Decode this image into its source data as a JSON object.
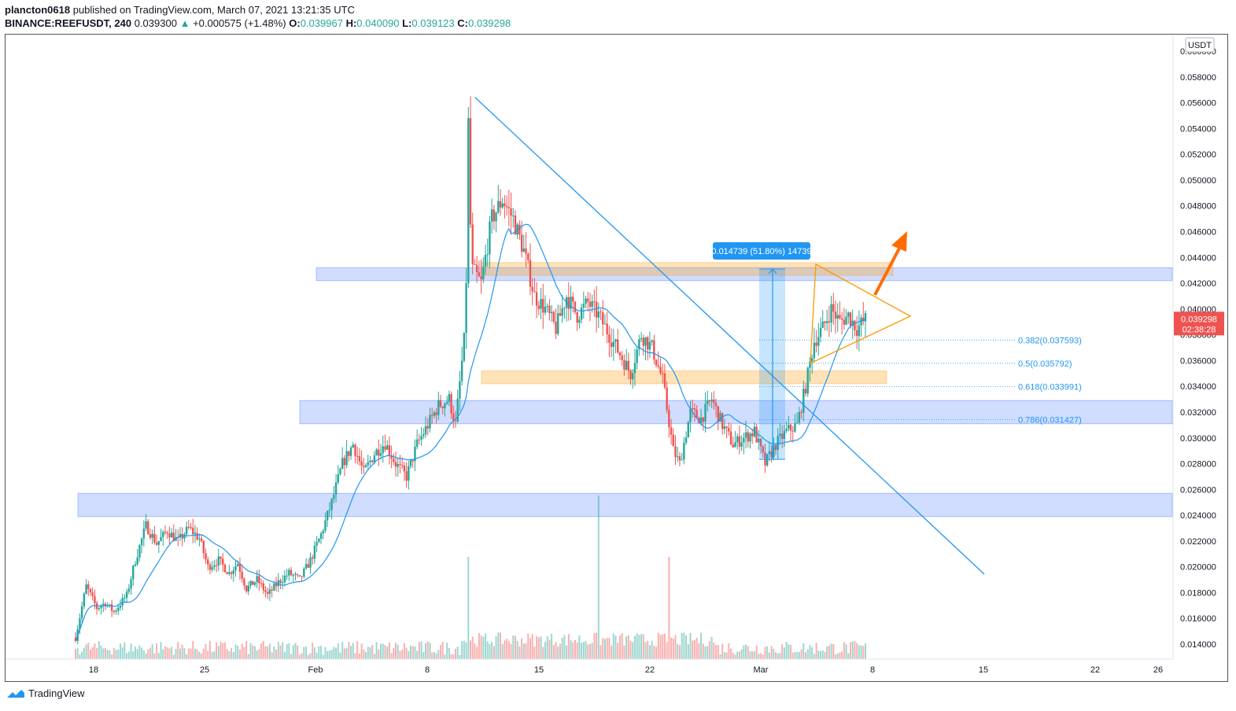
{
  "header": {
    "author": "plancton0618",
    "published": "published on TradingView.com, March 07, 2021 13:21:35 UTC",
    "symbol": "BINANCE:REEFUSDT, 240",
    "last": "0.039300",
    "change": "+0.000575 (+1.48%)",
    "o_label": "O:",
    "o_val": "0.039967",
    "h_label": "H:",
    "h_val": "0.040090",
    "l_label": "L:",
    "l_val": "0.039123",
    "c_label": "C:",
    "c_val": "0.039298"
  },
  "footer": {
    "brand": "TradingView"
  },
  "colors": {
    "up": "#26a69a",
    "down": "#ef5350",
    "zone_blue": "#2962ff",
    "zone_orange": "#ff9800",
    "line_blue": "#2196f3",
    "price_tag": "#ef5350"
  },
  "chart_data": {
    "type": "candlestick",
    "title": "BINANCE:REEFUSDT, 240",
    "currency_label": "USDT",
    "ylim": [
      0.0128,
      0.0612
    ],
    "y_ticks": [
      "0.014000",
      "0.016000",
      "0.018000",
      "0.020000",
      "0.022000",
      "0.024000",
      "0.026000",
      "0.028000",
      "0.030000",
      "0.032000",
      "0.034000",
      "0.036000",
      "0.038000",
      "0.040000",
      "0.042000",
      "0.044000",
      "0.046000",
      "0.048000",
      "0.050000",
      "0.052000",
      "0.054000",
      "0.056000",
      "0.058000",
      "0.060000"
    ],
    "x_ticks": [
      "18",
      "25",
      "Feb",
      "8",
      "15",
      "22",
      "Mar",
      "8",
      "15",
      "22",
      "26"
    ],
    "last_price": "0.039298",
    "countdown": "02:38:28",
    "measure_label": "0.014739 (51.80%) 14739",
    "fib_levels": [
      {
        "label": "0.382(0.037593)",
        "price": 0.037593
      },
      {
        "label": "0.5(0.035792)",
        "price": 0.035792
      },
      {
        "label": "0.618(0.033991)",
        "price": 0.033991
      },
      {
        "label": "0.786(0.031427)",
        "price": 0.031427
      }
    ],
    "zones": [
      {
        "color": "blue",
        "top": 0.0432,
        "bottom": 0.0422
      },
      {
        "color": "orange",
        "top": 0.0436,
        "bottom": 0.0426
      },
      {
        "color": "orange",
        "top": 0.0352,
        "bottom": 0.0342
      },
      {
        "color": "blue",
        "top": 0.0329,
        "bottom": 0.0311
      },
      {
        "color": "blue",
        "top": 0.0257,
        "bottom": 0.0239
      }
    ],
    "path_key": [
      [
        0,
        0.0145
      ],
      [
        5,
        0.0185
      ],
      [
        10,
        0.0168
      ],
      [
        14,
        0.0172
      ],
      [
        18,
        0.0165
      ],
      [
        24,
        0.0178
      ],
      [
        28,
        0.0205
      ],
      [
        33,
        0.0232
      ],
      [
        38,
        0.0218
      ],
      [
        43,
        0.0228
      ],
      [
        48,
        0.022
      ],
      [
        53,
        0.023
      ],
      [
        58,
        0.0222
      ],
      [
        62,
        0.02
      ],
      [
        67,
        0.0205
      ],
      [
        72,
        0.0195
      ],
      [
        76,
        0.0203
      ],
      [
        80,
        0.0183
      ],
      [
        85,
        0.019
      ],
      [
        90,
        0.0178
      ],
      [
        95,
        0.0188
      ],
      [
        100,
        0.0195
      ],
      [
        105,
        0.019
      ],
      [
        110,
        0.0205
      ],
      [
        115,
        0.0225
      ],
      [
        120,
        0.025
      ],
      [
        125,
        0.028
      ],
      [
        130,
        0.0295
      ],
      [
        135,
        0.0273
      ],
      [
        140,
        0.0288
      ],
      [
        145,
        0.0296
      ],
      [
        150,
        0.028
      ],
      [
        155,
        0.027
      ],
      [
        160,
        0.0295
      ],
      [
        165,
        0.031
      ],
      [
        170,
        0.0325
      ],
      [
        175,
        0.033
      ],
      [
        178,
        0.031
      ],
      [
        182,
        0.0375
      ],
      [
        184,
        0.05
      ],
      [
        186,
        0.043
      ],
      [
        190,
        0.042
      ],
      [
        195,
        0.047
      ],
      [
        200,
        0.0485
      ],
      [
        205,
        0.047
      ],
      [
        210,
        0.0445
      ],
      [
        215,
        0.041
      ],
      [
        220,
        0.04
      ],
      [
        225,
        0.0385
      ],
      [
        230,
        0.041
      ],
      [
        235,
        0.0395
      ],
      [
        240,
        0.0405
      ],
      [
        245,
        0.0395
      ],
      [
        250,
        0.038
      ],
      [
        255,
        0.0365
      ],
      [
        260,
        0.035
      ],
      [
        265,
        0.038
      ],
      [
        270,
        0.037
      ],
      [
        275,
        0.0345
      ],
      [
        280,
        0.029
      ],
      [
        283,
        0.028
      ],
      [
        288,
        0.032
      ],
      [
        293,
        0.0315
      ],
      [
        298,
        0.033
      ],
      [
        303,
        0.031
      ],
      [
        308,
        0.0295
      ],
      [
        313,
        0.03
      ],
      [
        318,
        0.0305
      ],
      [
        323,
        0.028
      ],
      [
        328,
        0.0295
      ],
      [
        333,
        0.0305
      ],
      [
        338,
        0.031
      ],
      [
        342,
        0.034
      ],
      [
        346,
        0.0375
      ],
      [
        350,
        0.0385
      ],
      [
        354,
        0.04
      ],
      [
        358,
        0.039
      ],
      [
        362,
        0.0395
      ],
      [
        366,
        0.0385
      ],
      [
        370,
        0.0392
      ]
    ],
    "volume_spikes": [
      [
        184,
        0.5
      ],
      [
        245,
        0.8
      ],
      [
        278,
        0.5
      ]
    ]
  }
}
